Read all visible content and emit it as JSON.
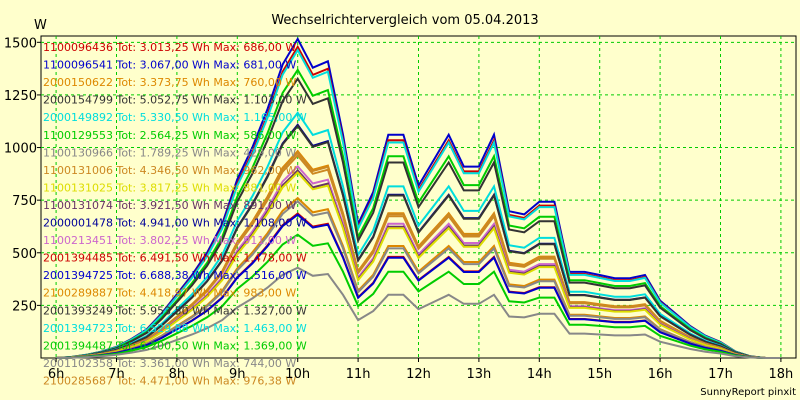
{
  "chart_data": {
    "type": "line",
    "title": "Wechselrichtervergleich vom 05.04.2013",
    "ylabel": "W",
    "footer": "SunnyReport pinxit",
    "x_ticks": [
      "6h",
      "7h",
      "8h",
      "9h",
      "10h",
      "11h",
      "12h",
      "13h",
      "14h",
      "15h",
      "16h",
      "17h",
      "18h"
    ],
    "y_ticks": [
      250,
      500,
      750,
      1000,
      1250,
      1500
    ],
    "xlim": [
      5.75,
      18.25
    ],
    "ylim": [
      0,
      1530
    ],
    "grid": true,
    "legend_position": "top-left",
    "x": [
      6,
      6.25,
      6.5,
      6.75,
      7,
      7.25,
      7.5,
      7.75,
      8,
      8.25,
      8.5,
      8.75,
      9,
      9.25,
      9.5,
      9.75,
      10,
      10.25,
      10.5,
      10.75,
      11,
      11.25,
      11.5,
      11.75,
      12,
      12.25,
      12.5,
      12.75,
      13,
      13.25,
      13.5,
      13.75,
      14,
      14.25,
      14.5,
      14.75,
      15,
      15.25,
      15.5,
      15.75,
      16,
      16.25,
      16.5,
      16.75,
      17,
      17.25,
      17.5,
      17.75,
      18
    ],
    "profile": [
      0,
      0.003,
      0.01,
      0.02,
      0.035,
      0.06,
      0.09,
      0.14,
      0.2,
      0.26,
      0.33,
      0.42,
      0.56,
      0.66,
      0.78,
      0.92,
      1.0,
      0.91,
      0.93,
      0.7,
      0.42,
      0.52,
      0.7,
      0.7,
      0.54,
      0.62,
      0.7,
      0.6,
      0.6,
      0.7,
      0.46,
      0.45,
      0.49,
      0.49,
      0.27,
      0.27,
      0.26,
      0.25,
      0.25,
      0.26,
      0.18,
      0.14,
      0.1,
      0.07,
      0.05,
      0.02,
      0.005,
      0,
      0
    ],
    "series": [
      {
        "id": "1100096436",
        "tot": "3.013,25",
        "max": "686,00",
        "color": "#cc0000"
      },
      {
        "id": "1100096541",
        "tot": "3.067,00",
        "max": "681,00",
        "color": "#0000cc"
      },
      {
        "id": "2000150622",
        "tot": "3.373,75",
        "max": "760,00",
        "color": "#dd8800"
      },
      {
        "id": "2000154799",
        "tot": "5.052,75",
        "max": "1.103,00",
        "color": "#333333"
      },
      {
        "id": "2000149892",
        "tot": "5.330,50",
        "max": "1.165,00",
        "color": "#00dddd"
      },
      {
        "id": "1100129553",
        "tot": "2.564,25",
        "max": "586,00",
        "color": "#00cc00"
      },
      {
        "id": "1100130966",
        "tot": "1.789,25",
        "max": "429,00",
        "color": "#888888"
      },
      {
        "id": "1100131006",
        "tot": "4.346,50",
        "max": "962,00",
        "color": "#cc8822"
      },
      {
        "id": "1100131025",
        "tot": "3.817,25",
        "max": "881,00",
        "color": "#dddd00"
      },
      {
        "id": "1100131074",
        "tot": "3.921,50",
        "max": "891,00",
        "color": "#663366"
      },
      {
        "id": "2000001478",
        "tot": "4.941,00",
        "max": "1.108,00",
        "color": "#000099"
      },
      {
        "id": "1100213451",
        "tot": "3.802,25",
        "max": "911,00",
        "color": "#cc66cc"
      },
      {
        "id": "2001394485",
        "tot": "6.491,50",
        "max": "1.478,00",
        "color": "#cc0000"
      },
      {
        "id": "2001394725",
        "tot": "6.688,38",
        "max": "1.516,00",
        "color": "#0000cc"
      },
      {
        "id": "2100289887",
        "tot": "4.418,97",
        "max": "983,00",
        "color": "#dd8800"
      },
      {
        "id": "2001393249",
        "tot": "5.953,50",
        "max": "1.327,00",
        "color": "#333333"
      },
      {
        "id": "2001394723",
        "tot": "6.529,88",
        "max": "1.463,00",
        "color": "#00dddd"
      },
      {
        "id": "2001394487",
        "tot": "6.200,50",
        "max": "1.369,00",
        "color": "#00cc00"
      },
      {
        "id": "2001102358",
        "tot": "3.361,00",
        "max": "744,00",
        "color": "#888888"
      },
      {
        "id": "2100285687",
        "tot": "4.471,00",
        "max": "976,38",
        "color": "#cc8822"
      }
    ],
    "legend_tot_label": "Tot:",
    "legend_unit_wh": "Wh",
    "legend_max_label": "Max:",
    "legend_unit_w": "W"
  }
}
